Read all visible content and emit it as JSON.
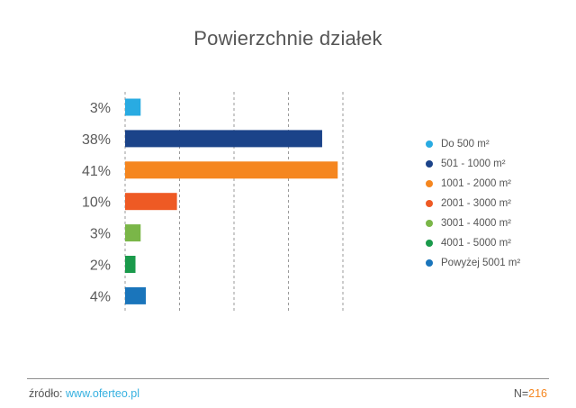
{
  "chart_data": {
    "type": "bar",
    "orientation": "horizontal",
    "title": "Powierzchnie działek",
    "categories": [
      "Do 500 m²",
      "501 - 1000 m²",
      "1001 - 2000 m²",
      "2001 - 3000 m²",
      "3001 - 4000 m²",
      "4001 - 5000 m²",
      "Powyżej 5001 m²"
    ],
    "values": [
      3,
      38,
      41,
      10,
      3,
      2,
      4
    ],
    "value_labels": [
      "3%",
      "38%",
      "41%",
      "10%",
      "3%",
      "2%",
      "4%"
    ],
    "colors": [
      "#29abe2",
      "#1b4389",
      "#f5861f",
      "#ee5a24",
      "#7ab648",
      "#1a9a4b",
      "#1a75bb"
    ],
    "xlim": [
      0,
      42
    ],
    "gridlines": [
      0,
      10.5,
      21,
      31.5,
      42
    ],
    "grid": true,
    "legend_position": "right"
  },
  "footer": {
    "source_label": "źródło:",
    "source_link": "www.oferteo.pl",
    "sample_label": "N=",
    "sample_value": "216"
  }
}
